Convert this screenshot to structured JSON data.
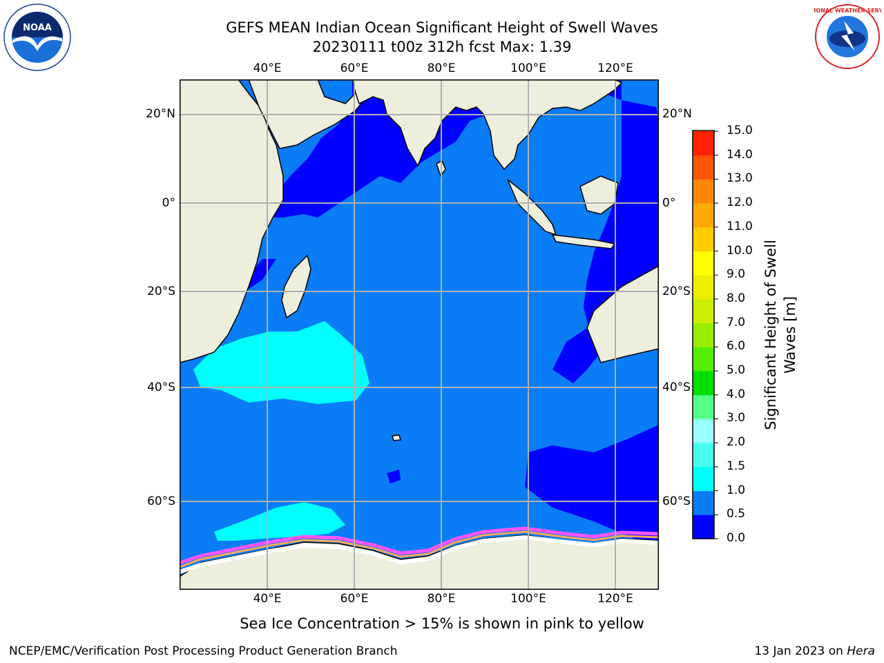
{
  "header": {
    "title_line1": "GEFS MEAN Indian Ocean Significant Height of Swell Waves",
    "title_line2": "20230111 t00z 312h fcst   Max: 1.39"
  },
  "logos": {
    "left": "NOAA",
    "right": "NATIONAL WEATHER SERVICE"
  },
  "map": {
    "lon_ticks_top": [
      "40°E",
      "60°E",
      "80°E",
      "100°E",
      "120°E"
    ],
    "lon_ticks_bottom": [
      "40°E",
      "60°E",
      "80°E",
      "100°E",
      "120°E"
    ],
    "lat_ticks_left": [
      "20°N",
      "0°",
      "20°S",
      "40°S",
      "60°S"
    ],
    "lat_ticks_right": [
      "20°N",
      "0°",
      "20°S",
      "40°S",
      "60°S"
    ],
    "colors": {
      "land": "#eeeedd",
      "ocean_low": "#0000ff",
      "ocean_mid": "#0a7cf5",
      "ocean_high": "#00ffff",
      "ice_pink": "#ff55ff",
      "ice_orange": "#ffaa55",
      "ice_white": "#ffffff"
    }
  },
  "colorbar": {
    "label_line1": "Significant Height of Swell",
    "label_line2": "Waves [m]",
    "ticks": [
      "0.0",
      "0.5",
      "1.0",
      "1.5",
      "2.0",
      "3.0",
      "4.0",
      "5.0",
      "6.0",
      "7.0",
      "8.0",
      "9.0",
      "10.0",
      "11.0",
      "12.0",
      "13.0",
      "14.0",
      "15.0"
    ],
    "colors": [
      "#0000ff",
      "#0a7cf5",
      "#00ffff",
      "#44ffee",
      "#99ffff",
      "#55ff88",
      "#00dd00",
      "#55ee00",
      "#99ee00",
      "#ccee00",
      "#eeee00",
      "#ffff00",
      "#ffcc00",
      "#ffaa00",
      "#ff8800",
      "#ff5500",
      "#ff2200"
    ]
  },
  "caption": "Sea Ice Concentration > 15% is shown in pink to yellow",
  "footer": {
    "left": "NCEP/EMC/Verification Post Processing Product Generation Branch",
    "right_date": "13 Jan 2023 on ",
    "right_machine": "Hera"
  }
}
